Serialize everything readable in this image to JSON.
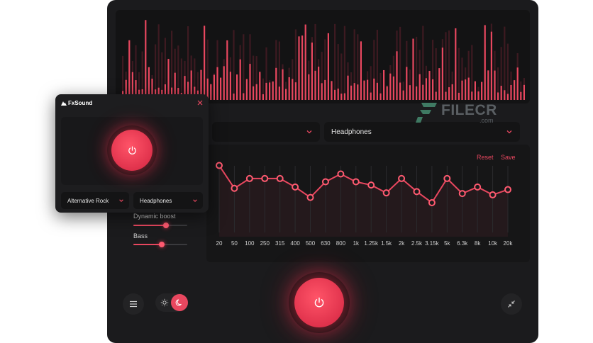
{
  "app": {
    "title": "FxSound"
  },
  "colors": {
    "accent": "#e8475f",
    "window_bg": "#1b1b1d",
    "panel_bg": "#131314"
  },
  "main": {
    "preset_select": {
      "value": ""
    },
    "output_select": {
      "value": "Headphones"
    },
    "eq": {
      "reset_label": "Reset",
      "save_label": "Save",
      "bands": [
        "20",
        "50",
        "100",
        "250",
        "315",
        "400",
        "500",
        "630",
        "800",
        "1k",
        "1.25k",
        "1.5k",
        "2k",
        "2.5k",
        "3.15k",
        "5k",
        "6.3k",
        "8k",
        "10k",
        "20k"
      ],
      "levels": [
        0.88,
        0.18,
        0.48,
        0.48,
        0.48,
        0.22,
        -0.1,
        0.38,
        0.62,
        0.38,
        0.28,
        0.04,
        0.48,
        0.08,
        -0.26,
        0.48,
        0.02,
        0.22,
        -0.02,
        0.14
      ]
    },
    "effects": [
      {
        "label": "Dynamic boost",
        "value": 0.6
      },
      {
        "label": "Bass",
        "value": 0.52
      }
    ],
    "buttons": {
      "menu": "menu-icon",
      "theme_light": "sun-icon",
      "theme_dark": "moon-icon",
      "power": "power-icon",
      "collapse": "collapse-icon"
    }
  },
  "mini": {
    "title": "FxSound",
    "preset_select": {
      "value": "Alternative Rock"
    },
    "output_select": {
      "value": "Headphones"
    }
  },
  "watermark": {
    "text": "FILECR",
    "sub": ".com"
  }
}
